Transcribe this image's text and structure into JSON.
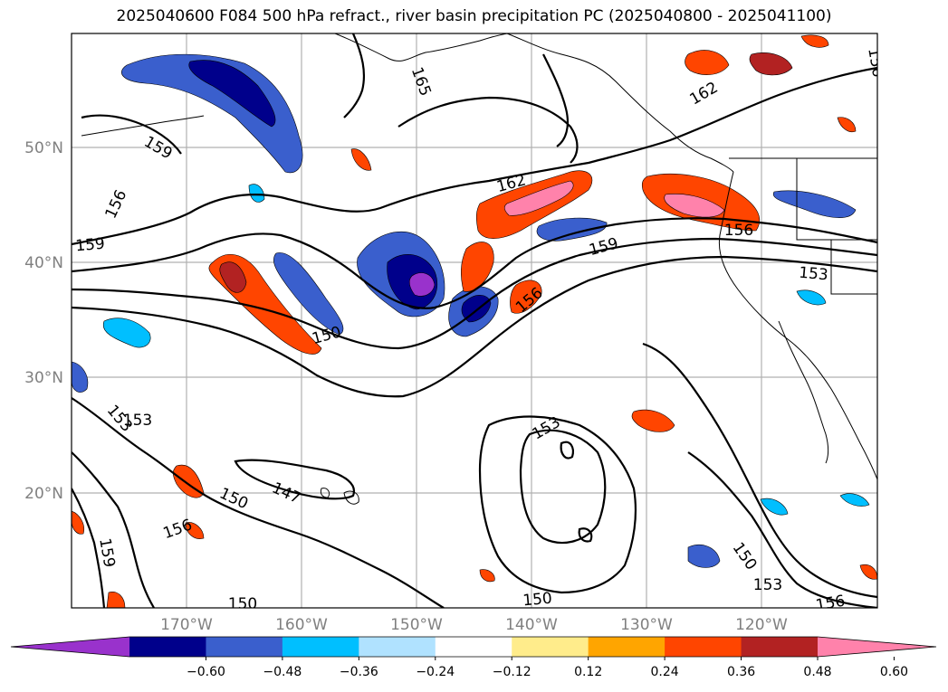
{
  "title": "2025040600 F084 500 hPa refract., river basin precipitation PC (2025040800 - 2025041100)",
  "map": {
    "lon_range": [
      -180,
      -110
    ],
    "lat_range": [
      10,
      60
    ],
    "lat_labels": [
      "50°N",
      "40°N",
      "30°N",
      "20°N"
    ],
    "lon_labels": [
      "170°W",
      "160°W",
      "150°W",
      "140°W",
      "130°W",
      "120°W"
    ],
    "grid": true,
    "contour_labels": [
      "165",
      "162",
      "162",
      "159",
      "159",
      "159",
      "156",
      "156",
      "156",
      "156",
      "153",
      "153",
      "153",
      "153",
      "150",
      "150",
      "150",
      "150",
      "147",
      "156",
      "159",
      "150",
      "153",
      "156"
    ]
  },
  "colorbar": {
    "colors": [
      "#9932cc",
      "#00008b",
      "#3a5fcd",
      "#00bfff",
      "#b0e2ff",
      "#ffffff",
      "#ffec8b",
      "#ffa500",
      "#ff4500",
      "#b22222",
      "#ff82ab"
    ],
    "ticks": [
      "−0.60",
      "−0.48",
      "−0.36",
      "−0.24",
      "−0.12",
      "0.12",
      "0.24",
      "0.36",
      "0.48",
      "0.60"
    ]
  }
}
